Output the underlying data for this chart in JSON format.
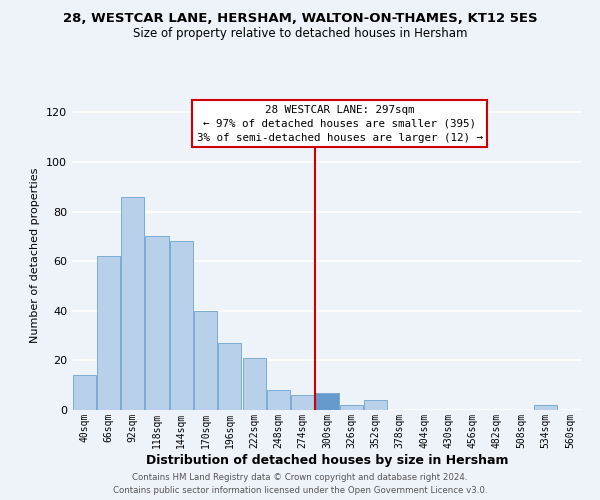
{
  "title": "28, WESTCAR LANE, HERSHAM, WALTON-ON-THAMES, KT12 5ES",
  "subtitle": "Size of property relative to detached houses in Hersham",
  "xlabel": "Distribution of detached houses by size in Hersham",
  "ylabel": "Number of detached properties",
  "bin_labels": [
    "40sqm",
    "66sqm",
    "92sqm",
    "118sqm",
    "144sqm",
    "170sqm",
    "196sqm",
    "222sqm",
    "248sqm",
    "274sqm",
    "300sqm",
    "326sqm",
    "352sqm",
    "378sqm",
    "404sqm",
    "430sqm",
    "456sqm",
    "482sqm",
    "508sqm",
    "534sqm",
    "560sqm"
  ],
  "bar_heights": [
    14,
    62,
    86,
    70,
    68,
    40,
    27,
    21,
    8,
    6,
    7,
    2,
    4,
    0,
    0,
    0,
    0,
    0,
    0,
    2,
    0
  ],
  "bar_color": "#b8d0ea",
  "bar_edge_color": "#7aadd4",
  "highlight_bar_index": 10,
  "highlight_bar_color": "#6699cc",
  "vline_color": "#cc0000",
  "annotation_title": "28 WESTCAR LANE: 297sqm",
  "annotation_line1": "← 97% of detached houses are smaller (395)",
  "annotation_line2": "3% of semi-detached houses are larger (12) →",
  "ylim": [
    0,
    125
  ],
  "yticks": [
    0,
    20,
    40,
    60,
    80,
    100,
    120
  ],
  "footer_line1": "Contains HM Land Registry data © Crown copyright and database right 2024.",
  "footer_line2": "Contains public sector information licensed under the Open Government Licence v3.0.",
  "bg_color": "#eef2f9",
  "plot_bg_color": "#eef2f9",
  "grid_color": "#ffffff"
}
